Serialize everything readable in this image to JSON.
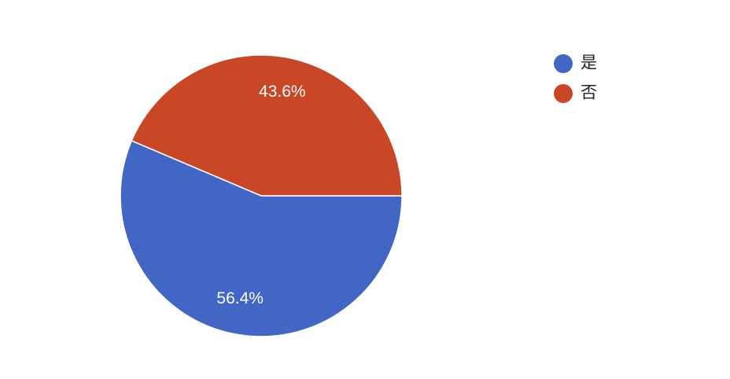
{
  "chart_data": {
    "type": "pie",
    "categories": [
      "是",
      "否"
    ],
    "values": [
      56.4,
      43.6
    ],
    "value_labels": [
      "56.4%",
      "43.6%"
    ],
    "colors": [
      "#4166c6",
      "#c94727"
    ],
    "legend": "top-right"
  }
}
